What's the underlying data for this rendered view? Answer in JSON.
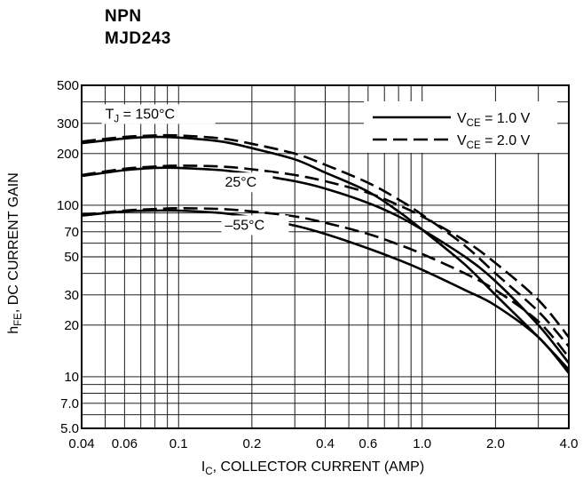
{
  "header": {
    "line1": "NPN",
    "line2": "MJD243"
  },
  "chart_data": {
    "type": "line",
    "title": "",
    "xscale": "log",
    "yscale": "log",
    "xlim": [
      0.04,
      4.0
    ],
    "ylim": [
      5.0,
      500
    ],
    "grid": true,
    "x_ticks": [
      {
        "v": 0.04,
        "label": "0.04"
      },
      {
        "v": 0.06,
        "label": "0.06"
      },
      {
        "v": 0.1,
        "label": "0.1"
      },
      {
        "v": 0.2,
        "label": "0.2"
      },
      {
        "v": 0.4,
        "label": "0.4"
      },
      {
        "v": 0.6,
        "label": "0.6"
      },
      {
        "v": 1.0,
        "label": "1.0"
      },
      {
        "v": 2.0,
        "label": "2.0"
      },
      {
        "v": 4.0,
        "label": "4.0"
      }
    ],
    "y_ticks": [
      {
        "v": 5,
        "label": "5.0"
      },
      {
        "v": 7,
        "label": "7.0"
      },
      {
        "v": 10,
        "label": "10"
      },
      {
        "v": 20,
        "label": "20"
      },
      {
        "v": 30,
        "label": "30"
      },
      {
        "v": 50,
        "label": "50"
      },
      {
        "v": 70,
        "label": "70"
      },
      {
        "v": 100,
        "label": "100"
      },
      {
        "v": 200,
        "label": "200"
      },
      {
        "v": 300,
        "label": "300"
      },
      {
        "v": 500,
        "label": "500"
      }
    ],
    "xlabel": {
      "main": "I",
      "sub": "C",
      "rest": ", COLLECTOR CURRENT (AMP)"
    },
    "ylabel": {
      "main": "h",
      "sub": "FE",
      "rest": ", DC CURRENT GAIN"
    },
    "legend": {
      "position": "top-right",
      "entries": [
        {
          "main": "V",
          "sub": "CE",
          "rest": " = 1.0 V",
          "style": "solid"
        },
        {
          "main": "V",
          "sub": "CE",
          "rest": " = 2.0 V",
          "style": "dashed"
        }
      ]
    },
    "annotations": [
      {
        "main": "T",
        "sub": "J",
        "rest": " = 150°C",
        "anchor_x": 0.05,
        "anchor_y": 320
      },
      {
        "main": "",
        "sub": "",
        "rest": "25°C",
        "anchor_x": 0.155,
        "anchor_y": 128
      },
      {
        "main": "",
        "sub": "",
        "rest": "–55°C",
        "anchor_x": 0.155,
        "anchor_y": 72
      }
    ],
    "series": [
      {
        "temperature": "150°C",
        "vce": "1.0 V",
        "style": "solid",
        "x": [
          0.04,
          0.06,
          0.08,
          0.1,
          0.15,
          0.2,
          0.3,
          0.4,
          0.6,
          0.8,
          1.0,
          1.5,
          2.0,
          3.0,
          4.0
        ],
        "y": [
          230,
          245,
          250,
          248,
          235,
          215,
          185,
          155,
          120,
          92,
          72,
          45,
          30,
          17,
          11
        ]
      },
      {
        "temperature": "150°C",
        "vce": "2.0 V",
        "style": "dashed",
        "x": [
          0.04,
          0.06,
          0.08,
          0.1,
          0.15,
          0.2,
          0.3,
          0.4,
          0.6,
          0.8,
          1.0,
          1.5,
          2.0,
          3.0,
          4.0
        ],
        "y": [
          235,
          250,
          255,
          255,
          245,
          228,
          200,
          172,
          135,
          108,
          88,
          58,
          40,
          24,
          15
        ]
      },
      {
        "temperature": "25°C",
        "vce": "1.0 V",
        "style": "solid",
        "x": [
          0.04,
          0.06,
          0.08,
          0.1,
          0.15,
          0.2,
          0.3,
          0.4,
          0.6,
          0.8,
          1.0,
          1.5,
          2.0,
          3.0,
          4.0
        ],
        "y": [
          148,
          160,
          165,
          165,
          160,
          152,
          138,
          125,
          103,
          86,
          72,
          50,
          36,
          20,
          12
        ]
      },
      {
        "temperature": "25°C",
        "vce": "2.0 V",
        "style": "dashed",
        "x": [
          0.04,
          0.06,
          0.08,
          0.1,
          0.15,
          0.2,
          0.3,
          0.4,
          0.6,
          0.8,
          1.0,
          1.5,
          2.0,
          3.0,
          4.0
        ],
        "y": [
          150,
          163,
          168,
          170,
          168,
          162,
          150,
          138,
          118,
          100,
          86,
          62,
          46,
          28,
          17
        ]
      },
      {
        "temperature": "-55°C",
        "vce": "1.0 V",
        "style": "solid",
        "x": [
          0.04,
          0.06,
          0.08,
          0.1,
          0.15,
          0.2,
          0.3,
          0.4,
          0.6,
          0.8,
          1.0,
          1.5,
          2.0,
          3.0,
          4.0
        ],
        "y": [
          87,
          92,
          93,
          93,
          90,
          85,
          76,
          68,
          56,
          48,
          42,
          32,
          26,
          17,
          10.5
        ]
      },
      {
        "temperature": "-55°C",
        "vce": "2.0 V",
        "style": "dashed",
        "x": [
          0.04,
          0.06,
          0.08,
          0.1,
          0.15,
          0.2,
          0.3,
          0.4,
          0.6,
          0.8,
          1.0,
          1.5,
          2.0,
          3.0,
          4.0
        ],
        "y": [
          88,
          93,
          95,
          96,
          95,
          92,
          86,
          79,
          68,
          59,
          52,
          40,
          32,
          21,
          13
        ]
      }
    ]
  }
}
